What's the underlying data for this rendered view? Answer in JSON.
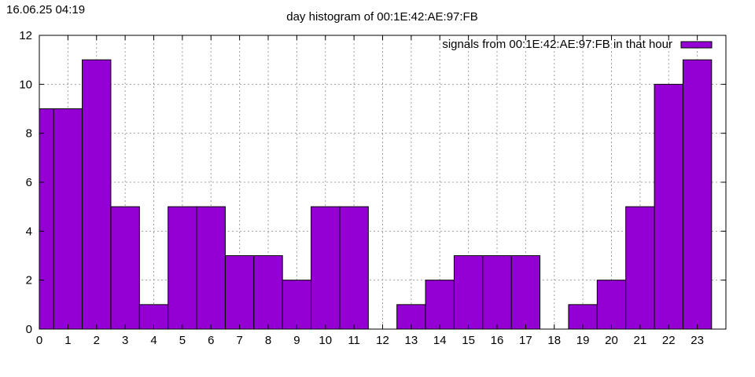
{
  "header": {
    "timestamp": "16.06.25 04:19"
  },
  "colors": {
    "bar": "#9400d3",
    "grid": "#a0a0a0",
    "axis": "#000000"
  },
  "chart_data": {
    "type": "bar",
    "title": "day histogram of 00:1E:42:AE:97:FB",
    "xlabel": "",
    "ylabel": "",
    "categories": [
      "0",
      "1",
      "2",
      "3",
      "4",
      "5",
      "6",
      "7",
      "8",
      "9",
      "10",
      "11",
      "12",
      "13",
      "14",
      "15",
      "16",
      "17",
      "18",
      "19",
      "20",
      "21",
      "22",
      "23"
    ],
    "series": [
      {
        "name": "signals from 00:1E:42:AE:97:FB in that hour",
        "values": [
          9,
          9,
          11,
          5,
          1,
          5,
          5,
          3,
          3,
          2,
          5,
          5,
          0,
          1,
          2,
          3,
          3,
          3,
          0,
          1,
          2,
          5,
          10,
          11
        ]
      }
    ],
    "ylim": [
      0,
      12
    ],
    "yticks": [
      "0",
      "2",
      "4",
      "6",
      "8",
      "10",
      "12"
    ],
    "grid": true,
    "legend": "top-right"
  }
}
